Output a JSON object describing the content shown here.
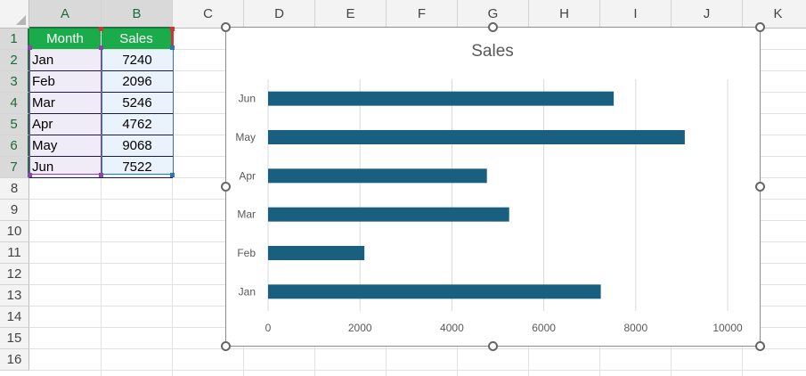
{
  "sheet": {
    "columns": [
      "A",
      "B",
      "C",
      "D",
      "E",
      "F",
      "G",
      "H",
      "I",
      "J",
      "K"
    ],
    "rows": [
      "1",
      "2",
      "3",
      "4",
      "5",
      "6",
      "7",
      "8",
      "9",
      "10",
      "11",
      "12",
      "13",
      "14",
      "15",
      "16"
    ],
    "table": {
      "headers": [
        "Month",
        "Sales"
      ],
      "rows": [
        [
          "Jan",
          "7240"
        ],
        [
          "Feb",
          "2096"
        ],
        [
          "Mar",
          "5246"
        ],
        [
          "Apr",
          "4762"
        ],
        [
          "May",
          "9068"
        ],
        [
          "Jun",
          "7522"
        ]
      ]
    }
  },
  "chart_data": {
    "type": "bar",
    "orientation": "horizontal",
    "title": "Sales",
    "categories": [
      "Jan",
      "Feb",
      "Mar",
      "Apr",
      "May",
      "Jun"
    ],
    "values": [
      7240,
      2096,
      5246,
      4762,
      9068,
      7522
    ],
    "xticks": [
      "0",
      "2000",
      "4000",
      "6000",
      "8000",
      "10000"
    ],
    "xlim": [
      0,
      10000
    ],
    "grid": true,
    "legend": "none",
    "bar_color": "#195f80",
    "xlabel": "",
    "ylabel": ""
  },
  "colors": {
    "header_fill": "#1aab4b",
    "header_border": "#d13438",
    "month_fill": "#efecf7",
    "sales_fill": "#eaf2fb"
  }
}
